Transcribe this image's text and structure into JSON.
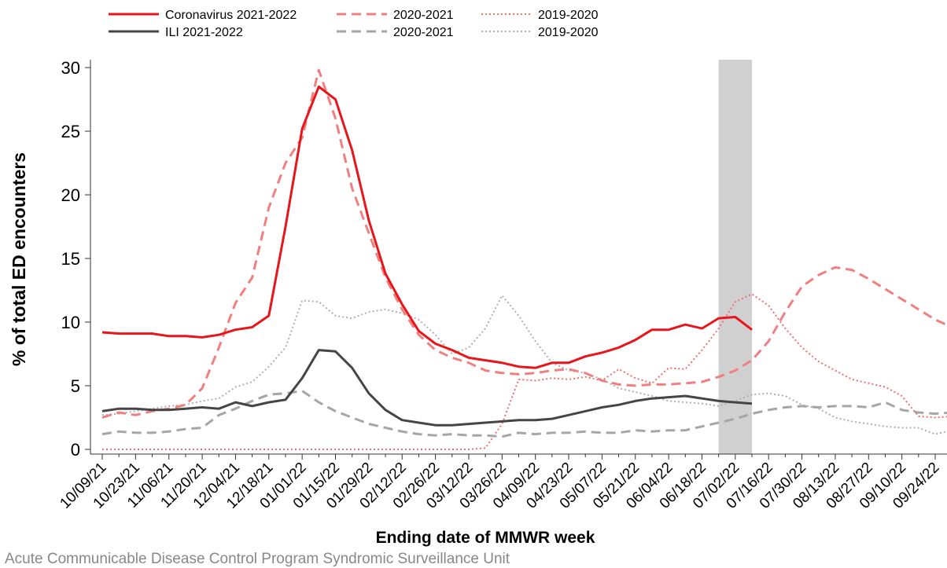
{
  "chart_data": {
    "type": "line",
    "y_label": "% of total ED encounters",
    "x_label": "Ending date of MMWR week",
    "footer": "Acute Communicable Disease Control Program Syndromic Surveillance Unit",
    "categories": [
      "10/09/21",
      null,
      "10/23/21",
      null,
      "11/06/21",
      null,
      "11/20/21",
      null,
      "12/04/21",
      null,
      "12/18/21",
      null,
      "01/01/22",
      null,
      "01/15/22",
      null,
      "01/29/22",
      null,
      "02/12/22",
      null,
      "02/26/22",
      null,
      "03/12/22",
      null,
      "03/26/22",
      null,
      "04/09/22",
      null,
      "04/23/22",
      null,
      "05/07/22",
      null,
      "05/21/22",
      null,
      "06/04/22",
      null,
      "06/18/22",
      null,
      "07/02/22",
      null,
      "07/16/22",
      null,
      "07/30/22",
      null,
      "08/13/22",
      null,
      "08/27/22",
      null,
      "09/10/22",
      null,
      "09/24/22",
      null
    ],
    "ylim": [
      0,
      30
    ],
    "yticks": [
      0,
      5,
      10,
      15,
      20,
      25,
      30
    ],
    "shaded_weeks": [
      37,
      39
    ],
    "series": [
      {
        "name": "Coronavirus 2021-2022",
        "color": "#e8151b",
        "dash": "solid",
        "values": [
          9.2,
          9.1,
          9.1,
          9.1,
          8.9,
          8.9,
          8.8,
          9.0,
          9.4,
          9.6,
          10.5,
          17.5,
          25.2,
          28.5,
          27.5,
          23.5,
          18,
          13.8,
          11.4,
          9.3,
          8.3,
          7.8,
          7.2,
          7.0,
          6.8,
          6.5,
          6.4,
          6.8,
          6.8,
          7.3,
          7.6,
          8.0,
          8.6,
          9.4,
          9.4,
          9.8,
          9.5,
          10.3,
          10.4,
          9.4,
          null,
          null,
          null,
          null,
          null,
          null,
          null,
          null,
          null,
          null,
          null,
          null
        ]
      },
      {
        "name": "ILI 2021-2022",
        "color": "#454545",
        "dash": "solid",
        "values": [
          3.0,
          3.2,
          3.2,
          3.1,
          3.1,
          3.2,
          3.3,
          3.2,
          3.7,
          3.4,
          3.7,
          3.9,
          5.6,
          7.8,
          7.7,
          6.4,
          4.4,
          3.1,
          2.3,
          2.1,
          1.9,
          1.9,
          2.0,
          2.1,
          2.2,
          2.3,
          2.3,
          2.4,
          2.7,
          3.0,
          3.3,
          3.5,
          3.8,
          4.0,
          4.1,
          4.2,
          4.0,
          3.8,
          3.7,
          3.6,
          null,
          null,
          null,
          null,
          null,
          null,
          null,
          null,
          null,
          null,
          null,
          null
        ]
      },
      {
        "name": "2020-2021",
        "color": "#f08080",
        "dash": "dashed",
        "values": [
          2.5,
          2.9,
          2.7,
          3.0,
          3.2,
          3.5,
          4.8,
          8.0,
          11.5,
          13.5,
          19,
          22.5,
          24.5,
          29.8,
          26,
          20.5,
          17,
          13.5,
          11,
          9,
          7.8,
          7.2,
          6.8,
          6.2,
          6.0,
          5.9,
          6.0,
          6.2,
          6.3,
          6.0,
          5.4,
          5.1,
          5.0,
          5.1,
          5.1,
          5.2,
          5.3,
          5.7,
          6.2,
          7.0,
          8.5,
          10.8,
          12.8,
          13.7,
          14.3,
          14.1,
          13.4,
          12.6,
          11.8,
          11.0,
          10.2,
          9.6
        ]
      },
      {
        "name": "2020-2021",
        "color": "#a6a6a6",
        "dash": "dashed",
        "values": [
          1.2,
          1.4,
          1.3,
          1.3,
          1.4,
          1.6,
          1.7,
          2.7,
          3.2,
          3.8,
          4.3,
          4.4,
          4.6,
          3.7,
          3.0,
          2.5,
          2.0,
          1.7,
          1.4,
          1.2,
          1.1,
          1.2,
          1.1,
          1.1,
          1.0,
          1.3,
          1.2,
          1.3,
          1.3,
          1.4,
          1.3,
          1.3,
          1.5,
          1.4,
          1.5,
          1.5,
          1.8,
          2.1,
          2.4,
          2.8,
          3.1,
          3.3,
          3.4,
          3.3,
          3.4,
          3.4,
          3.3,
          3.7,
          3.1,
          2.9,
          2.8,
          2.9
        ]
      },
      {
        "name": "2019-2020",
        "color": "#f07070",
        "dash": "dotted",
        "values": [
          0,
          0,
          0,
          0,
          0,
          0,
          0,
          0,
          0,
          0,
          0,
          0,
          0,
          0,
          0,
          0,
          0,
          0,
          0,
          0,
          0,
          0,
          0,
          0.1,
          2.0,
          5.5,
          5.4,
          5.6,
          5.5,
          5.7,
          5.4,
          6.3,
          5.6,
          5.2,
          6.4,
          6.3,
          7.8,
          9.5,
          11.6,
          12.2,
          11.3,
          9.5,
          8.0,
          6.9,
          6.2,
          5.5,
          5.2,
          4.9,
          4.2,
          2.6,
          2.5,
          2.6
        ]
      },
      {
        "name": "2019-2020",
        "color": "#b0b0b0",
        "dash": "dotted",
        "values": [
          2.7,
          2.8,
          3.0,
          3.2,
          3.4,
          3.5,
          3.8,
          4.0,
          4.9,
          5.3,
          6.5,
          8.0,
          11.7,
          11.6,
          10.5,
          10.3,
          10.8,
          11.0,
          10.7,
          10.2,
          9.0,
          7.5,
          8.0,
          9.5,
          12.1,
          10.5,
          8.5,
          6.8,
          6.2,
          6.0,
          5.5,
          4.8,
          4.5,
          4.2,
          3.8,
          3.7,
          3.6,
          3.4,
          3.8,
          4.3,
          4.4,
          4.2,
          3.5,
          3.2,
          2.5,
          2.2,
          2.0,
          1.8,
          1.7,
          1.7,
          1.2,
          1.5
        ]
      }
    ]
  }
}
